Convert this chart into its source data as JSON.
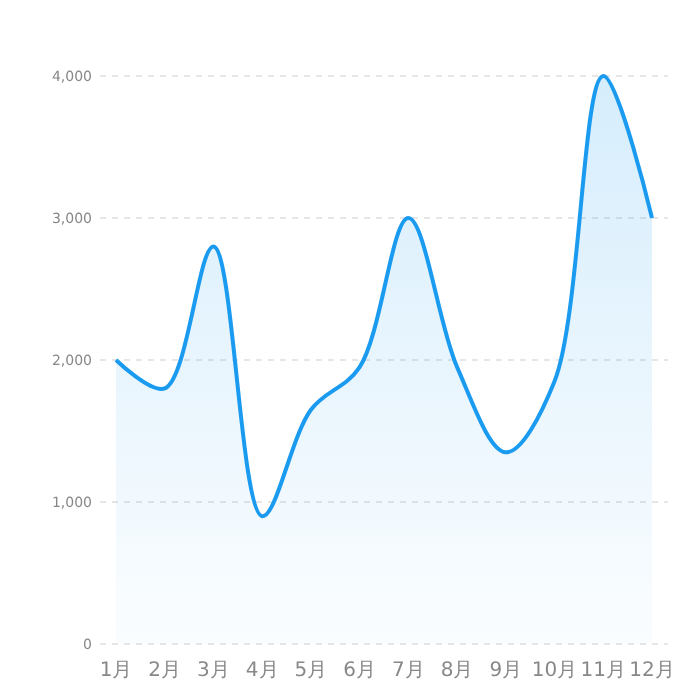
{
  "chart_data": {
    "type": "area",
    "categories": [
      "1月",
      "2月",
      "3月",
      "4月",
      "5月",
      "6月",
      "7月",
      "8月",
      "9月",
      "10月",
      "11月",
      "12月"
    ],
    "series": [
      {
        "color": "#1a9bf0",
        "values": [
          2000,
          1800,
          2800,
          900,
          1650,
          1950,
          3000,
          1950,
          1350,
          1850,
          4000,
          3000
        ]
      }
    ],
    "ylim": [
      0,
      4000
    ],
    "yticks": [
      {
        "value": 0,
        "label": "0"
      },
      {
        "value": 1000,
        "label": "1,000"
      },
      {
        "value": 2000,
        "label": "2,000"
      },
      {
        "value": 3000,
        "label": "3,000"
      },
      {
        "value": 4000,
        "label": "4,000"
      }
    ],
    "grid": "y",
    "marker": "none",
    "line_style": "solid"
  }
}
